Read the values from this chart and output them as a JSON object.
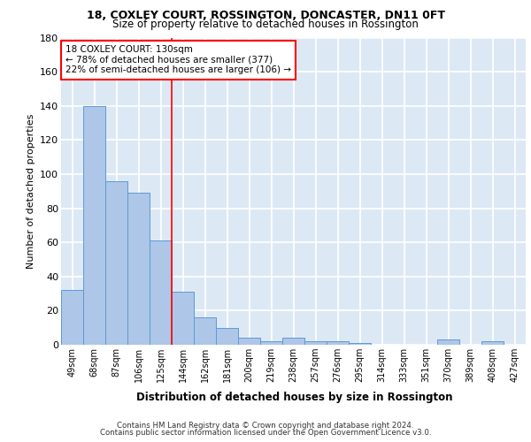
{
  "title1": "18, COXLEY COURT, ROSSINGTON, DONCASTER, DN11 0FT",
  "title2": "Size of property relative to detached houses in Rossington",
  "xlabel": "Distribution of detached houses by size in Rossington",
  "ylabel": "Number of detached properties",
  "categories": [
    "49sqm",
    "68sqm",
    "87sqm",
    "106sqm",
    "125sqm",
    "144sqm",
    "162sqm",
    "181sqm",
    "200sqm",
    "219sqm",
    "238sqm",
    "257sqm",
    "276sqm",
    "295sqm",
    "314sqm",
    "333sqm",
    "351sqm",
    "370sqm",
    "389sqm",
    "408sqm",
    "427sqm"
  ],
  "values": [
    32,
    140,
    96,
    89,
    61,
    31,
    16,
    10,
    4,
    2,
    4,
    2,
    2,
    1,
    0,
    0,
    0,
    3,
    0,
    2,
    0
  ],
  "bar_color": "#aec6e8",
  "bar_edge_color": "#5b9bd5",
  "background_color": "#dde8f5",
  "grid_color": "#ffffff",
  "redline_x": 4.5,
  "annotation_line1": "18 COXLEY COURT: 130sqm",
  "annotation_line2": "← 78% of detached houses are smaller (377)",
  "annotation_line3": "22% of semi-detached houses are larger (106) →",
  "footer1": "Contains HM Land Registry data © Crown copyright and database right 2024.",
  "footer2": "Contains public sector information licensed under the Open Government Licence v3.0.",
  "ylim": [
    0,
    180
  ],
  "yticks": [
    0,
    20,
    40,
    60,
    80,
    100,
    120,
    140,
    160,
    180
  ]
}
